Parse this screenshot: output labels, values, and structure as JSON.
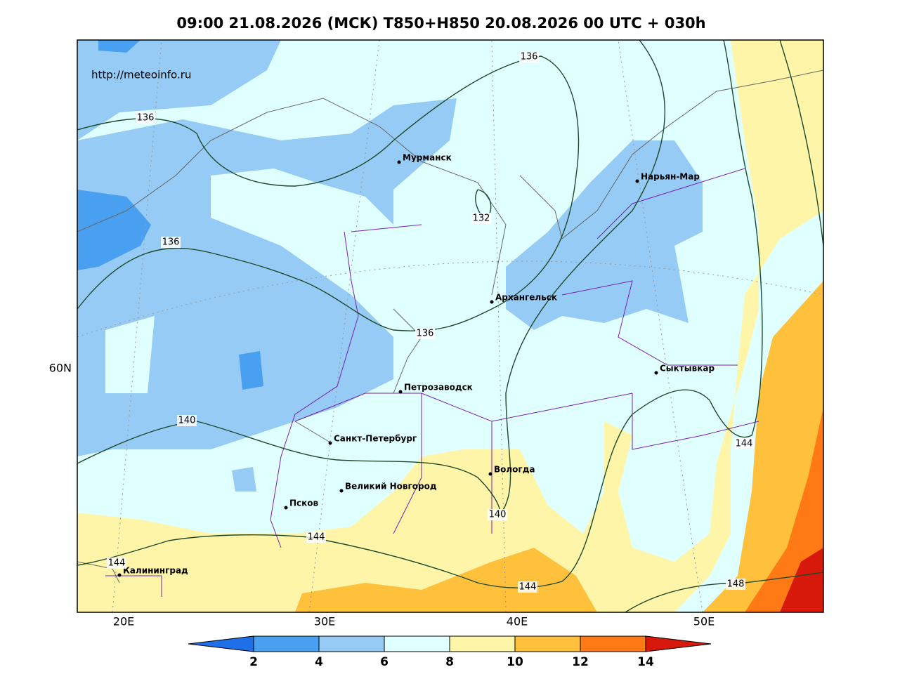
{
  "title": "09:00 21.08.2026 (МСК) T850+H850 20.08.2026 00 UTC + 030h",
  "url": "http://meteoinfo.ru",
  "lat_labels": [
    "60N"
  ],
  "lon_labels": [
    "20E",
    "30E",
    "40E",
    "50E"
  ],
  "cities": [
    "Мурманск",
    "Нарьян-Мар",
    "Архангельск",
    "Сыктывкар",
    "Петрозаводск",
    "Санкт-Петербург",
    "Вологда",
    "Великий Новгород",
    "Псков",
    "Калининград"
  ],
  "contour_labels": [
    136,
    136,
    136,
    136,
    132,
    140,
    140,
    144,
    144,
    144,
    144,
    148
  ],
  "colorbar": {
    "ticks": [
      2,
      4,
      6,
      8,
      10,
      12,
      14
    ],
    "colors": [
      "#1e6fe8",
      "#4aa0f0",
      "#96cbf5",
      "#e0ffff",
      "#fff5a8",
      "#ffc03c",
      "#ff7a14",
      "#d7190c"
    ]
  }
}
